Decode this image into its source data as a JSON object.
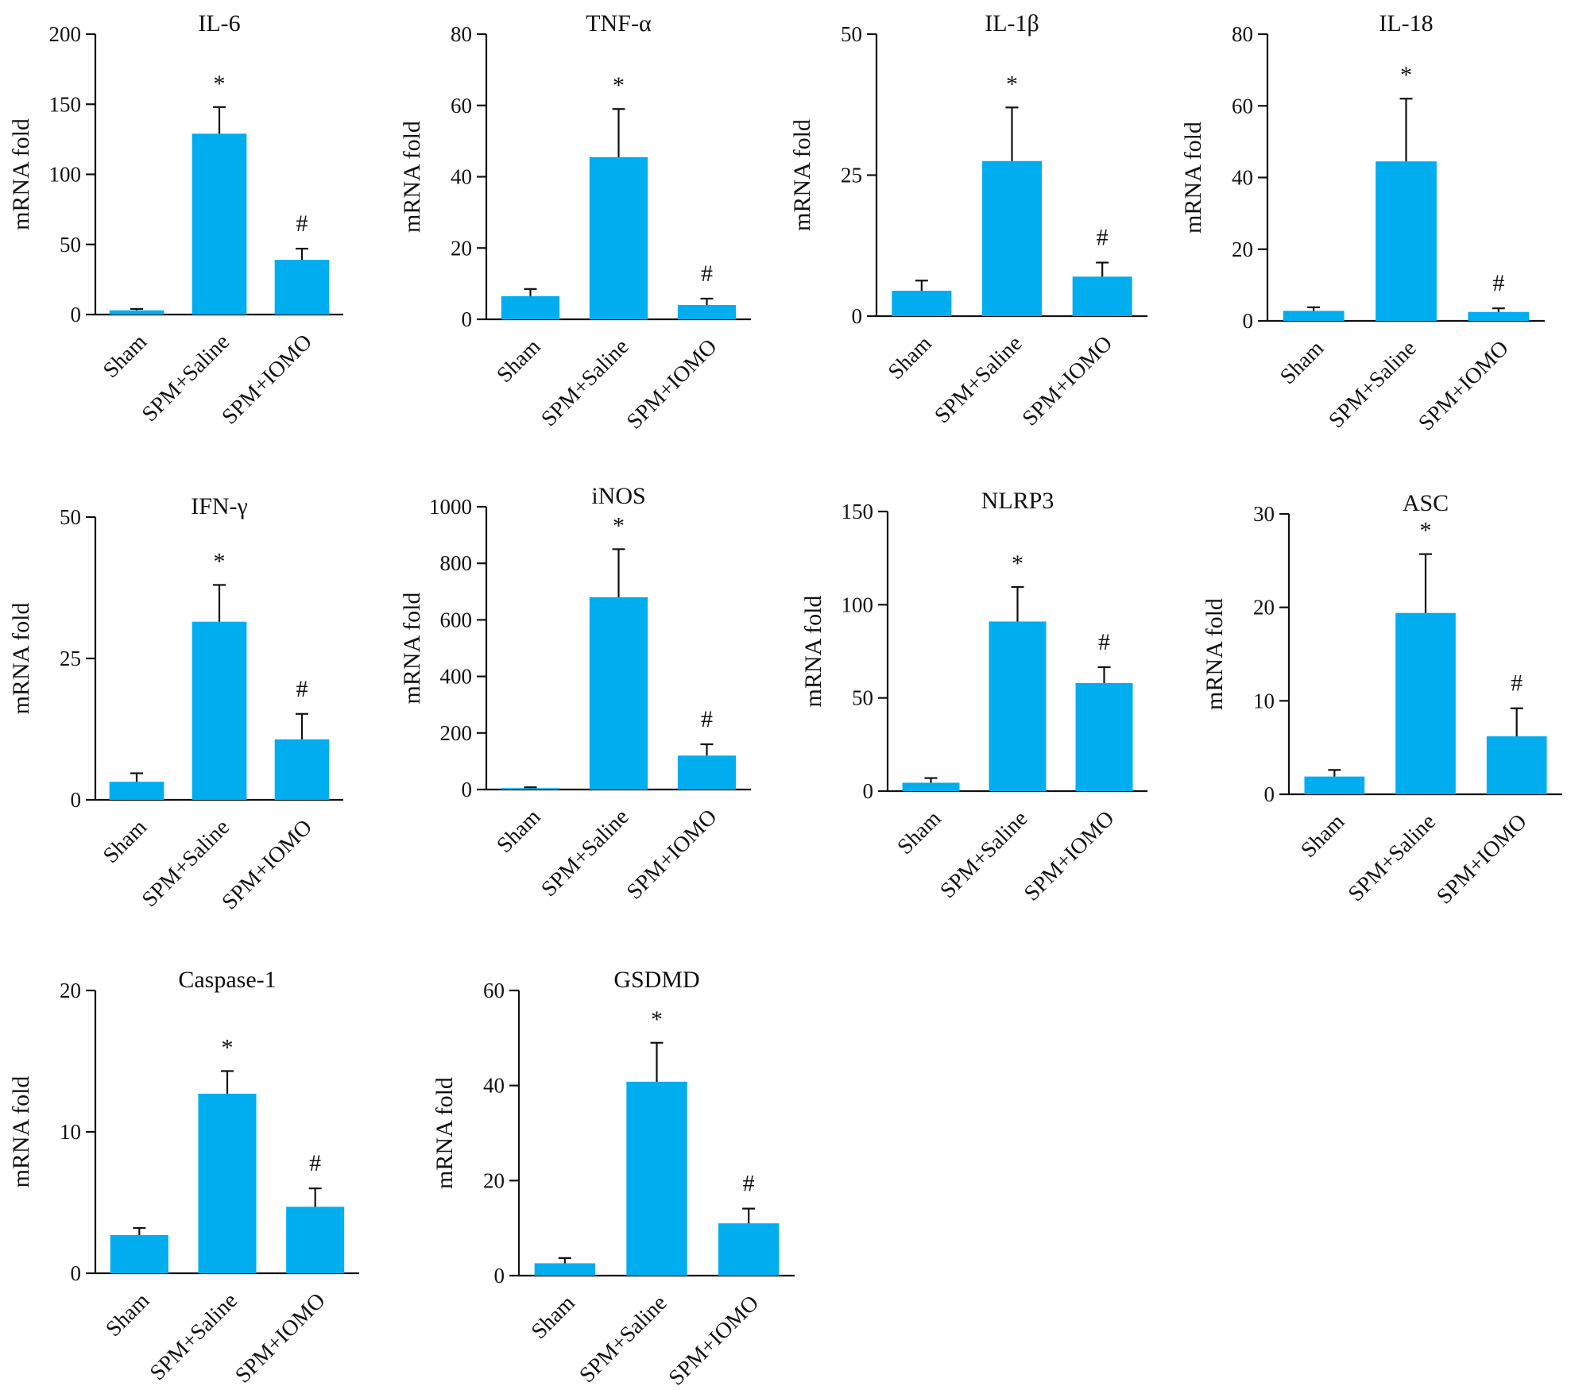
{
  "style": {
    "bar_color": "#00ADEF",
    "axis_color": "#111111"
  },
  "categories": [
    "Sham",
    "SPM+Saline",
    "SPM+IOMO"
  ],
  "chart_data": [
    {
      "type": "bar",
      "title": "IL-6",
      "ylabel": "mRNA fold",
      "ylim": [
        0,
        200
      ],
      "yticks": [
        0,
        50,
        100,
        150,
        200
      ],
      "categories": [
        "Sham",
        "SPM+Saline",
        "SPM+IOMO"
      ],
      "values": [
        3,
        129,
        39
      ],
      "errors": [
        1,
        19,
        8
      ],
      "annotations": [
        "",
        "*",
        "#"
      ]
    },
    {
      "type": "bar",
      "title": "TNF-α",
      "ylabel": "mRNA fold",
      "ylim": [
        0,
        80
      ],
      "yticks": [
        0,
        20,
        40,
        60,
        80
      ],
      "categories": [
        "Sham",
        "SPM+Saline",
        "SPM+IOMO"
      ],
      "values": [
        6.5,
        45.5,
        4
      ],
      "errors": [
        2,
        13.5,
        1.8
      ],
      "annotations": [
        "",
        "*",
        "#"
      ]
    },
    {
      "type": "bar",
      "title": "IL-1β",
      "ylabel": "mRNA fold",
      "ylim": [
        0,
        50
      ],
      "yticks": [
        0,
        25,
        50
      ],
      "categories": [
        "Sham",
        "SPM+Saline",
        "SPM+IOMO"
      ],
      "values": [
        4.5,
        27.5,
        7
      ],
      "errors": [
        1.8,
        9.5,
        2.5
      ],
      "annotations": [
        "",
        "*",
        "#"
      ]
    },
    {
      "type": "bar",
      "title": "IL-18",
      "ylabel": "mRNA fold",
      "ylim": [
        0,
        80
      ],
      "yticks": [
        0,
        20,
        40,
        60,
        80
      ],
      "categories": [
        "Sham",
        "SPM+Saline",
        "SPM+IOMO"
      ],
      "values": [
        2.8,
        44.5,
        2.5
      ],
      "errors": [
        1,
        17.5,
        1
      ],
      "annotations": [
        "",
        "*",
        "#"
      ]
    },
    {
      "type": "bar",
      "title": "IFN-γ",
      "ylabel": "mRNA fold",
      "ylim": [
        0,
        50
      ],
      "yticks": [
        0,
        25,
        50
      ],
      "categories": [
        "Sham",
        "SPM+Saline",
        "SPM+IOMO"
      ],
      "values": [
        3.2,
        31.5,
        10.7
      ],
      "errors": [
        1.5,
        6.5,
        4.5
      ],
      "annotations": [
        "",
        "*",
        "#"
      ]
    },
    {
      "type": "bar",
      "title": "iNOS",
      "ylabel": "mRNA fold",
      "ylim": [
        0,
        1000
      ],
      "yticks": [
        0,
        200,
        400,
        600,
        800,
        1000
      ],
      "categories": [
        "Sham",
        "SPM+Saline",
        "SPM+IOMO"
      ],
      "values": [
        5,
        680,
        120
      ],
      "errors": [
        3,
        170,
        40
      ],
      "annotations": [
        "",
        "*",
        "#"
      ]
    },
    {
      "type": "bar",
      "title": "NLRP3",
      "ylabel": "mRNA fold",
      "ylim": [
        0,
        150
      ],
      "yticks": [
        0,
        50,
        100,
        150
      ],
      "categories": [
        "Sham",
        "SPM+Saline",
        "SPM+IOMO"
      ],
      "values": [
        4.5,
        91,
        58
      ],
      "errors": [
        2.5,
        18.5,
        8.5
      ],
      "annotations": [
        "",
        "*",
        "#"
      ]
    },
    {
      "type": "bar",
      "title": "ASC",
      "ylabel": "mRNA fold",
      "ylim": [
        0,
        30
      ],
      "yticks": [
        0,
        10,
        20,
        30
      ],
      "categories": [
        "Sham",
        "SPM+Saline",
        "SPM+IOMO"
      ],
      "values": [
        1.9,
        19.4,
        6.2
      ],
      "errors": [
        0.7,
        6.3,
        3
      ],
      "annotations": [
        "",
        "*",
        "#"
      ]
    },
    {
      "type": "bar",
      "title": "Caspase-1",
      "ylabel": "mRNA fold",
      "ylim": [
        0,
        20
      ],
      "yticks": [
        0,
        10,
        20
      ],
      "categories": [
        "Sham",
        "SPM+Saline",
        "SPM+IOMO"
      ],
      "values": [
        2.7,
        12.7,
        4.7
      ],
      "errors": [
        0.5,
        1.6,
        1.3
      ],
      "annotations": [
        "",
        "*",
        "#"
      ]
    },
    {
      "type": "bar",
      "title": "GSDMD",
      "ylabel": "mRNA fold",
      "ylim": [
        0,
        60
      ],
      "yticks": [
        0,
        20,
        40,
        60
      ],
      "categories": [
        "Sham",
        "SPM+Saline",
        "SPM+IOMO"
      ],
      "values": [
        2.6,
        40.8,
        11
      ],
      "errors": [
        1.1,
        8.2,
        3.1
      ],
      "annotations": [
        "",
        "*",
        "#"
      ]
    }
  ]
}
